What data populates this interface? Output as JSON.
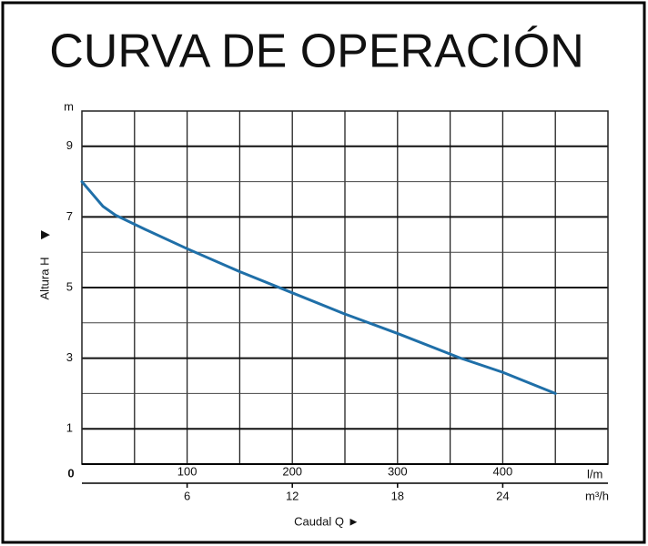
{
  "chart_data": {
    "type": "line",
    "title": "CURVA DE OPERACIÓN",
    "x_label": "Caudal  Q",
    "y_label": "Altura  H",
    "x_unit": "l/m",
    "x2_unit": "m³/h",
    "y_unit": "m",
    "x": [
      0,
      10,
      20,
      32,
      60,
      100,
      150,
      200,
      250,
      300,
      360,
      400,
      450
    ],
    "series": [
      {
        "name": "Altura",
        "color": "#1f6fa8",
        "values": [
          8.0,
          7.65,
          7.3,
          7.05,
          6.65,
          6.1,
          5.45,
          4.85,
          4.25,
          3.7,
          3.0,
          2.6,
          2.0
        ]
      }
    ],
    "xlim": [
      0,
      500
    ],
    "xticks": [
      0,
      100,
      200,
      300,
      400
    ],
    "x2lim": [
      0,
      30
    ],
    "x2ticks": [
      6,
      12,
      18,
      24
    ],
    "ylim": [
      0,
      10
    ],
    "yticks": [
      1,
      3,
      5,
      7,
      9
    ],
    "xgrid": [
      50,
      100,
      150,
      200,
      250,
      300,
      350,
      400,
      450
    ],
    "ygrid": [
      2,
      4,
      6,
      8
    ],
    "grid": true
  }
}
